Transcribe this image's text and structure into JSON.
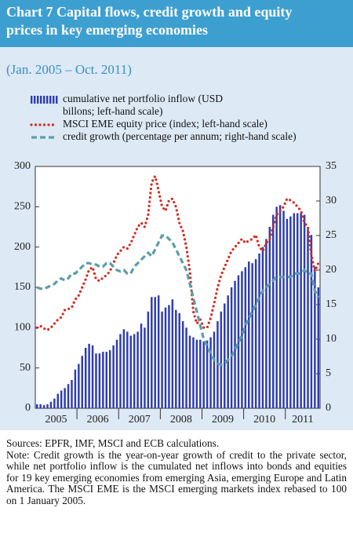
{
  "chart_data": {
    "type": "bar_line",
    "title": "Chart 7 Capital flows, credit growth and equity prices in key emerging economies",
    "subtitle": "(Jan. 2005 – Oct. 2011)",
    "categories": [
      null,
      null,
      null,
      null,
      null,
      "2005",
      null,
      null,
      null,
      null,
      null,
      null,
      null,
      null,
      null,
      null,
      null,
      "2006",
      null,
      null,
      null,
      null,
      null,
      null,
      null,
      null,
      null,
      null,
      null,
      "2007",
      null,
      null,
      null,
      null,
      null,
      null,
      null,
      null,
      null,
      null,
      null,
      "2008",
      null,
      null,
      null,
      null,
      null,
      null,
      null,
      null,
      null,
      null,
      null,
      "2009",
      null,
      null,
      null,
      null,
      null,
      null,
      null,
      null,
      null,
      null,
      null,
      "2010",
      null,
      null,
      null,
      null,
      null,
      null,
      null,
      null,
      null,
      null,
      "2011",
      null,
      null,
      null,
      null,
      null
    ],
    "series": [
      {
        "name": "cumulative net portfolio inflow (USD billons; left-hand scale)",
        "kind": "bar",
        "color": "#2e3db0",
        "axis": "y",
        "values": [
          5,
          5,
          4,
          5,
          8,
          12,
          18,
          22,
          25,
          30,
          35,
          48,
          55,
          65,
          75,
          80,
          78,
          68,
          68,
          70,
          70,
          72,
          78,
          85,
          92,
          98,
          95,
          90,
          92,
          95,
          105,
          100,
          120,
          138,
          138,
          140,
          120,
          125,
          128,
          135,
          122,
          118,
          108,
          100,
          90,
          88,
          85,
          85,
          83,
          84,
          88,
          95,
          108,
          120,
          130,
          140,
          150,
          158,
          165,
          170,
          175,
          182,
          180,
          185,
          192,
          200,
          210,
          225,
          240,
          250,
          252,
          245,
          235,
          238,
          242,
          242,
          242,
          240,
          222,
          215,
          175,
          150
        ]
      },
      {
        "name": "MSCI EME equity price (index; left-hand scale)",
        "kind": "dotted",
        "color": "#d42a1e",
        "axis": "y",
        "values": [
          100,
          102,
          99,
          97,
          100,
          105,
          110,
          113,
          122,
          123,
          125,
          135,
          140,
          150,
          160,
          172,
          175,
          160,
          158,
          162,
          165,
          170,
          180,
          190,
          195,
          200,
          198,
          205,
          215,
          225,
          230,
          225,
          240,
          280,
          288,
          270,
          250,
          245,
          258,
          260,
          250,
          230,
          220,
          200,
          170,
          120,
          105,
          110,
          100,
          100,
          112,
          130,
          150,
          165,
          175,
          185,
          195,
          200,
          205,
          210,
          205,
          208,
          210,
          215,
          200,
          195,
          205,
          210,
          225,
          240,
          245,
          250,
          260,
          258,
          255,
          250,
          245,
          230,
          225,
          190,
          170,
          180
        ]
      },
      {
        "name": "credit growth (percentage per annum; right-hand scale)",
        "kind": "dashed",
        "color": "#5b9ea8",
        "axis": "y2",
        "values": [
          17.5,
          17.3,
          17.3,
          17.5,
          17.8,
          18,
          18.5,
          18.8,
          18.5,
          18.8,
          19.5,
          19.5,
          20,
          20.5,
          21,
          21,
          20.8,
          20.8,
          20.5,
          20.5,
          21,
          21,
          20.5,
          20,
          19.8,
          20,
          19.5,
          19.5,
          20.5,
          21,
          21.5,
          22,
          22.5,
          22,
          23,
          24,
          25,
          25,
          24.5,
          24,
          23,
          22,
          21,
          20,
          18,
          16,
          14,
          12,
          10,
          9,
          8,
          7,
          6.5,
          6.3,
          6.5,
          7,
          7.5,
          8.5,
          9.5,
          10.5,
          12,
          13,
          14,
          15,
          16,
          17,
          17.5,
          18,
          18.5,
          19,
          19,
          19,
          19,
          19,
          19.5,
          19.5,
          19.5,
          20,
          19.5,
          19.5,
          17,
          16
        ]
      }
    ],
    "ylim": [
      0,
      300
    ],
    "yticks": [
      0,
      50,
      100,
      150,
      200,
      250,
      300
    ],
    "y2lim": [
      0,
      35
    ],
    "y2ticks": [
      0,
      5,
      10,
      15,
      20,
      25,
      30,
      35
    ],
    "notes": [
      "Sources: EPFR, IMF, MSCI and ECB calculations.",
      "Note: Credit growth is the year-on-year growth of credit to the private sector, while net portfolio inflow is the cumulated net inflows into bonds and equities for 19 key emerging economies from emerging Asia, emerging Europe and Latin America. The MSCI EME is the MSCI emerging markets index rebased to 100 on 1 January 2005."
    ]
  }
}
